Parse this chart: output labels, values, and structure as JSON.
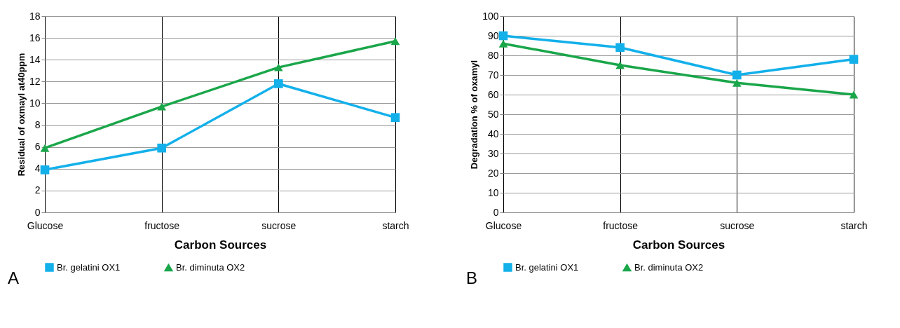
{
  "chart_data": [
    {
      "type": "line",
      "categories": [
        "Glucose",
        "fructose",
        "sucrose",
        "starch"
      ],
      "xlabel": "Carbon Sources",
      "ylabel": "Residual of oxmayl  at40ppm",
      "ylim": [
        0,
        18
      ],
      "yticks": [
        0,
        2,
        4,
        6,
        8,
        10,
        12,
        14,
        16,
        18
      ],
      "grid": true,
      "legend": "bottom",
      "annotations": [
        "A"
      ],
      "series": [
        {
          "name": "Br. gelatini OX1",
          "color": "#13b0ea",
          "marker": "square",
          "values": [
            3.9,
            5.9,
            11.8,
            8.7
          ]
        },
        {
          "name": "Br. diminuta OX2",
          "color": "#1aa64a",
          "marker": "triangle",
          "values": [
            5.9,
            9.7,
            13.3,
            15.7
          ]
        }
      ]
    },
    {
      "type": "line",
      "categories": [
        "Glucose",
        "fructose",
        "sucrose",
        "starch"
      ],
      "xlabel": "Carbon Sources",
      "ylabel": "Degradation % of oxamyl",
      "ylim": [
        0,
        100
      ],
      "yticks": [
        0,
        10,
        20,
        30,
        40,
        50,
        60,
        70,
        80,
        90,
        100
      ],
      "grid": true,
      "legend": "bottom",
      "annotations": [
        "B"
      ],
      "series": [
        {
          "name": "Br. gelatini OX1",
          "color": "#13b0ea",
          "marker": "square",
          "values": [
            90,
            84,
            70,
            78
          ]
        },
        {
          "name": "Br. diminuta OX2",
          "color": "#1aa64a",
          "marker": "triangle",
          "values": [
            86,
            75,
            66,
            60
          ]
        }
      ]
    }
  ]
}
